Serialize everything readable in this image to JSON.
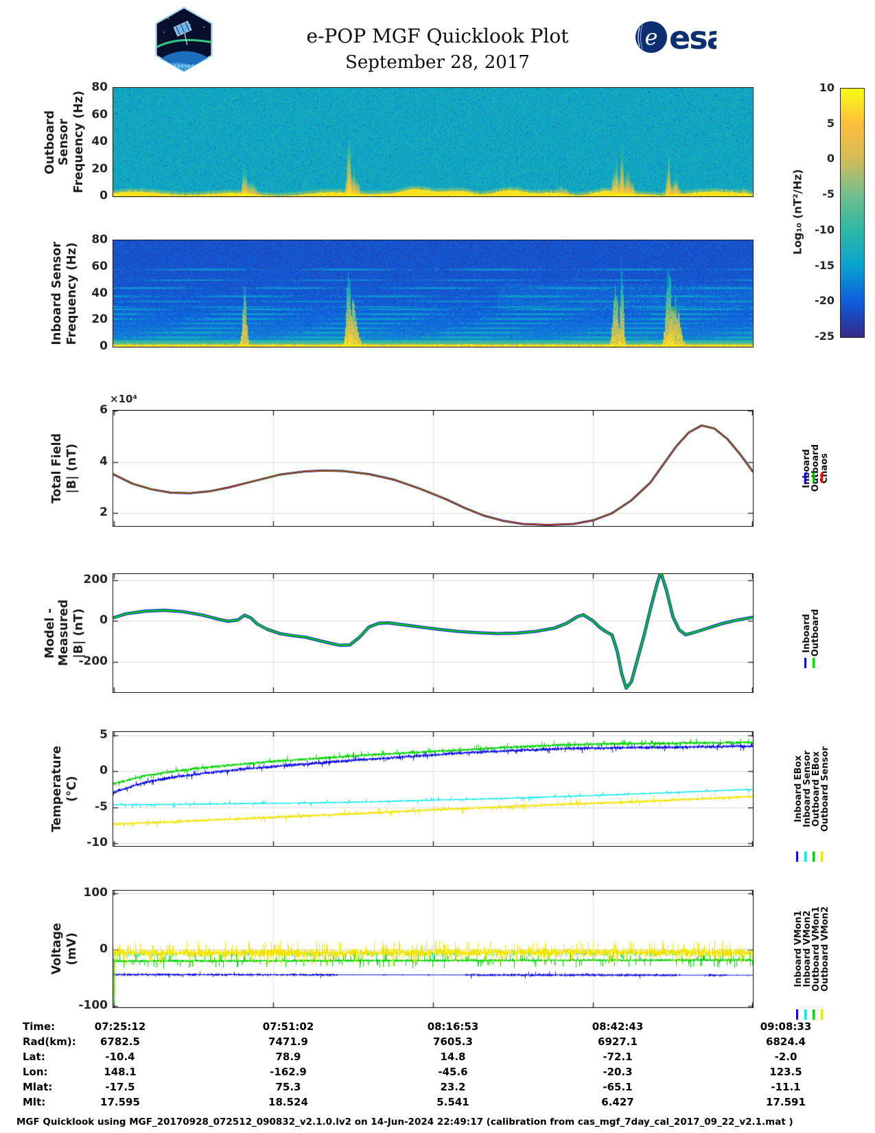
{
  "header": {
    "title": "e-POP MGF Quicklook Plot",
    "subtitle": "September 28, 2017",
    "cassiope_logo": "CASSIOPE",
    "esa_logo": "esa"
  },
  "colorbar": {
    "label": "Log₁₀ (nT²/Hz)",
    "ticks": [
      10,
      5,
      0,
      -5,
      -10,
      -15,
      -20,
      -25
    ],
    "range": [
      -25,
      10
    ],
    "gradient_top_to_bottom": [
      "#f9fb14",
      "#fdbe3c",
      "#d1bb59",
      "#72be8f",
      "#2cb8a5",
      "#08a3cf",
      "#0f5cdd",
      "#352a87"
    ]
  },
  "chart_data": [
    {
      "id": "outboard_spectrogram",
      "type": "heatmap",
      "ylabel_line1": "Outboard Sensor",
      "ylabel_line2": "Frequency (Hz)",
      "yticks": [
        80,
        60,
        40,
        20,
        0
      ],
      "ylim": [
        0,
        80
      ],
      "x_time_range": [
        "07:25:12",
        "09:08:33"
      ],
      "units": "Log10 (nT^2/Hz)",
      "description": "Mostly uniform blue background near -13, intense yellow band below ~3 Hz, broadband bursts at the fractions listed",
      "bursts": [
        {
          "p": 0.205,
          "h": 24,
          "w": 5
        },
        {
          "p": 0.215,
          "h": 13,
          "w": 10
        },
        {
          "p": 0.368,
          "h": 48,
          "w": 4
        },
        {
          "p": 0.376,
          "h": 20,
          "w": 9
        },
        {
          "p": 0.55,
          "h": 7,
          "w": 16
        },
        {
          "p": 0.7,
          "h": 9,
          "w": 14
        },
        {
          "p": 0.785,
          "h": 30,
          "w": 6
        },
        {
          "p": 0.795,
          "h": 48,
          "w": 3
        },
        {
          "p": 0.805,
          "h": 20,
          "w": 9
        },
        {
          "p": 0.868,
          "h": 32,
          "w": 4
        },
        {
          "p": 0.878,
          "h": 15,
          "w": 8
        },
        {
          "p": 0.985,
          "h": 9,
          "w": 6
        }
      ]
    },
    {
      "id": "inboard_spectrogram",
      "type": "heatmap",
      "ylabel_line1": "Inboard Sensor",
      "ylabel_line2": "Frequency (Hz)",
      "yticks": [
        80,
        60,
        40,
        20,
        0
      ],
      "ylim": [
        0,
        80
      ],
      "x_time_range": [
        "07:25:12",
        "09:08:33"
      ],
      "units": "Log10 (nT^2/Hz)",
      "description": "Darker blue background with horizontal interference lines, bright low-frequency band, and tall bursts reaching 80 Hz",
      "interference_lines_hz": [
        3.5,
        7,
        10.5,
        14,
        17.5,
        21,
        24.5,
        28,
        30,
        34,
        38,
        44,
        50,
        58
      ],
      "bursts": [
        {
          "p": 0.205,
          "h": 50,
          "w": 4
        },
        {
          "p": 0.368,
          "h": 82,
          "w": 4
        },
        {
          "p": 0.374,
          "h": 40,
          "w": 8
        },
        {
          "p": 0.785,
          "h": 60,
          "w": 5
        },
        {
          "p": 0.795,
          "h": 82,
          "w": 3
        },
        {
          "p": 0.868,
          "h": 82,
          "w": 5
        },
        {
          "p": 0.878,
          "h": 40,
          "w": 9
        }
      ]
    },
    {
      "id": "total_field",
      "type": "line",
      "ylabel_line1": "Total Field",
      "ylabel_line2": "|B| (nT)",
      "exp_label": "×10⁴",
      "yticks": [
        6,
        4,
        2
      ],
      "ylim": [
        1.5,
        6
      ],
      "y_units": "x10^4 nT",
      "legend": [
        "Inboard",
        "Outboard",
        "Chaos"
      ],
      "series": [
        {
          "name": "Inboard",
          "color": "#0000ee",
          "x": [
            0,
            0.03,
            0.06,
            0.09,
            0.12,
            0.15,
            0.18,
            0.22,
            0.26,
            0.3,
            0.33,
            0.36,
            0.4,
            0.44,
            0.48,
            0.52,
            0.55,
            0.58,
            0.61,
            0.64,
            0.68,
            0.72,
            0.75,
            0.78,
            0.81,
            0.84,
            0.86,
            0.88,
            0.9,
            0.92,
            0.94,
            0.96,
            0.98,
            1
          ],
          "y": [
            3.52,
            3.15,
            2.93,
            2.8,
            2.78,
            2.85,
            3.0,
            3.25,
            3.5,
            3.63,
            3.66,
            3.64,
            3.52,
            3.3,
            2.95,
            2.55,
            2.2,
            1.9,
            1.7,
            1.58,
            1.54,
            1.58,
            1.72,
            2.0,
            2.5,
            3.2,
            3.9,
            4.6,
            5.15,
            5.42,
            5.3,
            4.9,
            4.3,
            3.62
          ]
        },
        {
          "name": "Outboard",
          "color": "#00bb00",
          "x": [
            0,
            0.03,
            0.06,
            0.09,
            0.12,
            0.15,
            0.18,
            0.22,
            0.26,
            0.3,
            0.33,
            0.36,
            0.4,
            0.44,
            0.48,
            0.52,
            0.55,
            0.58,
            0.61,
            0.64,
            0.68,
            0.72,
            0.75,
            0.78,
            0.81,
            0.84,
            0.86,
            0.88,
            0.9,
            0.92,
            0.94,
            0.96,
            0.98,
            1
          ],
          "y": [
            3.52,
            3.15,
            2.93,
            2.8,
            2.78,
            2.85,
            3.0,
            3.25,
            3.5,
            3.63,
            3.66,
            3.64,
            3.52,
            3.3,
            2.95,
            2.55,
            2.2,
            1.9,
            1.7,
            1.58,
            1.54,
            1.58,
            1.72,
            2.0,
            2.5,
            3.2,
            3.9,
            4.6,
            5.15,
            5.42,
            5.3,
            4.9,
            4.3,
            3.62
          ]
        },
        {
          "name": "Chaos",
          "color": "#ee1100",
          "x": [
            0,
            0.03,
            0.06,
            0.09,
            0.12,
            0.15,
            0.18,
            0.22,
            0.26,
            0.3,
            0.33,
            0.36,
            0.4,
            0.44,
            0.48,
            0.52,
            0.55,
            0.58,
            0.61,
            0.64,
            0.68,
            0.72,
            0.75,
            0.78,
            0.81,
            0.84,
            0.86,
            0.88,
            0.9,
            0.92,
            0.94,
            0.96,
            0.98,
            1
          ],
          "y": [
            3.52,
            3.15,
            2.93,
            2.8,
            2.78,
            2.85,
            3.0,
            3.25,
            3.5,
            3.63,
            3.66,
            3.64,
            3.52,
            3.3,
            2.95,
            2.55,
            2.2,
            1.9,
            1.7,
            1.58,
            1.54,
            1.58,
            1.72,
            2.0,
            2.5,
            3.2,
            3.9,
            4.6,
            5.15,
            5.42,
            5.3,
            4.9,
            4.3,
            3.62
          ]
        }
      ]
    },
    {
      "id": "model_minus_measured",
      "type": "line",
      "ylabel_line1": "Model - Measured",
      "ylabel_line2": "|B| (nT)",
      "yticks": [
        200,
        0,
        -200
      ],
      "ylim": [
        -350,
        230
      ],
      "legend": [
        "Inboard",
        "Outboard"
      ],
      "series": [
        {
          "name": "Inboard",
          "color": "#0000ee",
          "x": [
            0,
            0.02,
            0.05,
            0.08,
            0.11,
            0.14,
            0.165,
            0.18,
            0.195,
            0.205,
            0.215,
            0.225,
            0.24,
            0.26,
            0.28,
            0.3,
            0.32,
            0.34,
            0.355,
            0.37,
            0.385,
            0.4,
            0.415,
            0.43,
            0.45,
            0.48,
            0.51,
            0.54,
            0.57,
            0.6,
            0.63,
            0.66,
            0.69,
            0.71,
            0.725,
            0.735,
            0.75,
            0.76,
            0.77,
            0.78,
            0.788,
            0.795,
            0.802,
            0.81,
            0.82,
            0.83,
            0.84,
            0.85,
            0.856,
            0.865,
            0.875,
            0.885,
            0.895,
            0.91,
            0.93,
            0.95,
            0.97,
            1
          ],
          "y": [
            15,
            35,
            48,
            52,
            45,
            28,
            8,
            -2,
            5,
            28,
            15,
            -15,
            -40,
            -62,
            -72,
            -80,
            -95,
            -110,
            -120,
            -118,
            -80,
            -30,
            -12,
            -10,
            -18,
            -30,
            -42,
            -52,
            -58,
            -62,
            -60,
            -52,
            -35,
            -10,
            20,
            30,
            0,
            -30,
            -52,
            -70,
            -150,
            -260,
            -330,
            -300,
            -185,
            -70,
            60,
            180,
            240,
            150,
            20,
            -45,
            -68,
            -55,
            -35,
            -15,
            0,
            18
          ]
        },
        {
          "name": "Outboard",
          "color": "#00dd00",
          "x": [
            0,
            0.02,
            0.05,
            0.08,
            0.11,
            0.14,
            0.165,
            0.18,
            0.195,
            0.205,
            0.215,
            0.225,
            0.24,
            0.26,
            0.28,
            0.3,
            0.32,
            0.34,
            0.355,
            0.37,
            0.385,
            0.4,
            0.415,
            0.43,
            0.45,
            0.48,
            0.51,
            0.54,
            0.57,
            0.6,
            0.63,
            0.66,
            0.69,
            0.71,
            0.725,
            0.735,
            0.75,
            0.76,
            0.77,
            0.78,
            0.788,
            0.795,
            0.802,
            0.81,
            0.82,
            0.83,
            0.84,
            0.85,
            0.856,
            0.865,
            0.875,
            0.885,
            0.895,
            0.91,
            0.93,
            0.95,
            0.97,
            1
          ],
          "y": [
            15,
            35,
            48,
            52,
            45,
            28,
            8,
            -2,
            5,
            28,
            15,
            -15,
            -40,
            -62,
            -72,
            -80,
            -95,
            -110,
            -120,
            -118,
            -80,
            -30,
            -12,
            -10,
            -18,
            -30,
            -42,
            -52,
            -58,
            -62,
            -60,
            -52,
            -35,
            -10,
            20,
            30,
            0,
            -30,
            -52,
            -70,
            -150,
            -260,
            -330,
            -300,
            -185,
            -70,
            60,
            180,
            240,
            150,
            20,
            -45,
            -68,
            -55,
            -35,
            -15,
            0,
            18
          ]
        }
      ]
    },
    {
      "id": "temperature",
      "type": "line",
      "ylabel_line1": "Temperature",
      "ylabel_line2": "(°C)",
      "yticks": [
        5,
        0,
        -5,
        -10
      ],
      "ylim": [
        -10.4,
        5.5
      ],
      "legend": [
        "Inboard EBox",
        "Inboard Sensor",
        "Outboard EBox",
        "Outboard Sensor"
      ],
      "series": [
        {
          "name": "Inboard EBox",
          "color": "#0a0af0",
          "noise_amp": 0.25,
          "spike_prob": 0.12,
          "spike_amp": 0.5,
          "base_line": true,
          "x": [
            0,
            0.05,
            0.1,
            0.15,
            0.2,
            0.25,
            0.3,
            0.35,
            0.4,
            0.45,
            0.5,
            0.55,
            0.6,
            0.65,
            0.7,
            0.75,
            0.8,
            0.85,
            0.9,
            0.95,
            1
          ],
          "y": [
            -2.9,
            -1.5,
            -0.7,
            -0.2,
            0.3,
            0.7,
            1.0,
            1.4,
            1.7,
            2.0,
            2.3,
            2.6,
            2.8,
            3.0,
            3.15,
            3.25,
            3.3,
            3.35,
            3.4,
            3.45,
            3.5
          ]
        },
        {
          "name": "Inboard Sensor",
          "color": "#00e8e8",
          "noise_amp": 0.12,
          "spike_prob": 0.06,
          "spike_amp": 0.4,
          "base_line": true,
          "x": [
            0,
            0.1,
            0.2,
            0.3,
            0.4,
            0.5,
            0.6,
            0.7,
            0.8,
            0.9,
            1
          ],
          "y": [
            -4.65,
            -4.6,
            -4.5,
            -4.4,
            -4.25,
            -4.0,
            -3.8,
            -3.5,
            -3.2,
            -2.85,
            -2.5
          ]
        },
        {
          "name": "Outboard EBox",
          "color": "#00d400",
          "noise_amp": 0.22,
          "spike_prob": 0.12,
          "spike_amp": 0.5,
          "base_line": true,
          "x": [
            0,
            0.05,
            0.1,
            0.15,
            0.2,
            0.25,
            0.3,
            0.35,
            0.4,
            0.45,
            0.5,
            0.55,
            0.6,
            0.65,
            0.7,
            0.75,
            0.8,
            0.85,
            0.9,
            0.95,
            1
          ],
          "y": [
            -1.7,
            -0.6,
            0.1,
            0.6,
            1.0,
            1.4,
            1.7,
            2.0,
            2.3,
            2.55,
            2.8,
            3.0,
            3.3,
            3.5,
            3.7,
            3.8,
            3.85,
            3.9,
            3.95,
            4.0,
            4.05
          ]
        },
        {
          "name": "Outboard Sensor",
          "color": "#f2e400",
          "noise_amp": 0.22,
          "spike_prob": 0.1,
          "spike_amp": 0.55,
          "base_line": true,
          "x": [
            0,
            0.1,
            0.2,
            0.3,
            0.4,
            0.5,
            0.6,
            0.7,
            0.8,
            0.9,
            1
          ],
          "y": [
            -7.35,
            -7.0,
            -6.6,
            -6.2,
            -5.8,
            -5.35,
            -5.0,
            -4.6,
            -4.3,
            -3.9,
            -3.5
          ]
        }
      ]
    },
    {
      "id": "voltage",
      "type": "line",
      "ylabel_line1": "Voltage",
      "ylabel_line2": "(mV)",
      "yticks": [
        100,
        0,
        -100
      ],
      "ylim": [
        -102,
        105
      ],
      "legend": [
        "Inboard VMon1",
        "Inboard VMon2",
        "Outboard VMon1",
        "Outboard VMon2"
      ],
      "series": [
        {
          "name": "Inboard VMon1",
          "color": "#0a0af0",
          "noise_amp": 2.5,
          "spike_prob": 0.05,
          "spike_amp": 5,
          "base_line": true,
          "segments": [
            [
              0,
              0.35
            ],
            [
              0.55,
              0.88
            ],
            [
              0.93,
              0.96
            ]
          ],
          "gap_density": 0.03,
          "density": 0.9,
          "x": [
            0,
            1
          ],
          "y": [
            -44,
            -45
          ]
        },
        {
          "name": "Inboard VMon2",
          "color": "#00e8e8",
          "noise_amp": 4,
          "spike_prob": 0.05,
          "spike_amp": 8,
          "density": 0.25,
          "x": [
            0,
            1
          ],
          "y": [
            -9,
            -7
          ]
        },
        {
          "name": "Outboard VMon1",
          "color": "#00d400",
          "noise_amp": 2.5,
          "spike_prob": 0.2,
          "spike_amp": 12,
          "density": 1,
          "base_line": true,
          "x": [
            0,
            1
          ],
          "y": [
            -20,
            -18
          ]
        },
        {
          "name": "Outboard VMon2",
          "color": "#f2e400",
          "noise_amp": 8,
          "spike_prob": 0.3,
          "spike_amp": 16,
          "density": 1,
          "x": [
            0,
            1
          ],
          "y": [
            -6,
            -4
          ]
        }
      ]
    }
  ],
  "bottom_table": {
    "rows": [
      {
        "label": "Time:",
        "values": [
          "07:25:12",
          "07:51:02",
          "08:16:53",
          "08:42:43",
          "09:08:33"
        ]
      },
      {
        "label": "Rad(km):",
        "values": [
          "6782.5",
          "7471.9",
          "7605.3",
          "6927.1",
          "6824.4"
        ]
      },
      {
        "label": "Lat:",
        "values": [
          "-10.4",
          "78.9",
          "14.8",
          "-72.1",
          "-2.0"
        ]
      },
      {
        "label": "Lon:",
        "values": [
          "148.1",
          "-162.9",
          "-45.6",
          "-20.3",
          "123.5"
        ]
      },
      {
        "label": "Mlat:",
        "values": [
          "-17.5",
          "75.3",
          "23.2",
          "-65.1",
          "-11.1"
        ]
      },
      {
        "label": "Mlt:",
        "values": [
          "17.595",
          "18.524",
          "5.541",
          "6.427",
          "17.591"
        ]
      }
    ]
  },
  "footer": "MGF Quicklook using MGF_20170928_072512_090832_v2.1.0.lv2 on 14-Jun-2024 22:49:17 (calibration from cas_mgf_7day_cal_2017_09_22_v2.1.mat )"
}
